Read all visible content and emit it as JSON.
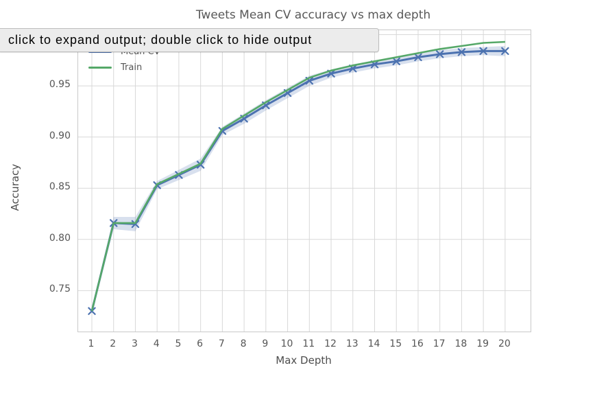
{
  "tooltip": {
    "text": "click to expand output; double click to hide output"
  },
  "chart_data": {
    "type": "line",
    "title": "Tweets Mean CV accuracy vs max depth",
    "xlabel": "Max Depth",
    "ylabel": "Accuracy",
    "x": [
      1,
      2,
      3,
      4,
      5,
      6,
      7,
      8,
      9,
      10,
      11,
      12,
      13,
      14,
      15,
      16,
      17,
      18,
      19,
      20
    ],
    "series": [
      {
        "name": "Mean CV",
        "color": "#4c72b0",
        "marker": "x",
        "values": [
          0.73,
          0.816,
          0.815,
          0.853,
          0.863,
          0.873,
          0.906,
          0.918,
          0.931,
          0.943,
          0.955,
          0.962,
          0.967,
          0.971,
          0.974,
          0.978,
          0.981,
          0.983,
          0.984,
          0.984
        ],
        "ci": [
          0.003,
          0.006,
          0.007,
          0.004,
          0.005,
          0.006,
          0.004,
          0.005,
          0.005,
          0.005,
          0.005,
          0.004,
          0.004,
          0.004,
          0.004,
          0.004,
          0.004,
          0.004,
          0.004,
          0.005
        ]
      },
      {
        "name": "Train",
        "color": "#55a868",
        "marker": null,
        "values": [
          0.73,
          0.816,
          0.816,
          0.854,
          0.864,
          0.874,
          0.908,
          0.921,
          0.934,
          0.946,
          0.958,
          0.965,
          0.97,
          0.974,
          0.978,
          0.982,
          0.986,
          0.989,
          0.992,
          0.993
        ]
      }
    ],
    "xticks": [
      1,
      2,
      3,
      4,
      5,
      6,
      7,
      8,
      9,
      10,
      11,
      12,
      13,
      14,
      15,
      16,
      17,
      18,
      19,
      20
    ],
    "xtick_labels": [
      "1",
      "2",
      "3",
      "4",
      "5",
      "6",
      "7",
      "8",
      "9",
      "10",
      "11",
      "12",
      "13",
      "14",
      "15",
      "16",
      "17",
      "18",
      "19",
      "20"
    ],
    "yticks": [
      0.75,
      0.8,
      0.85,
      0.9,
      0.95,
      1.0
    ],
    "ytick_labels": [
      "0.75",
      "0.80",
      "0.85",
      "0.90",
      "0.95",
      ""
    ],
    "xlim": [
      0.37,
      21.17
    ],
    "ylim": [
      0.71,
      1.0044
    ],
    "grid": true,
    "legend_position": "upper left",
    "colors": {
      "grid": "#d8d8d8",
      "spine": "#c9c9c9",
      "band": "rgba(76,114,176,0.22)",
      "text": "#555555"
    }
  }
}
